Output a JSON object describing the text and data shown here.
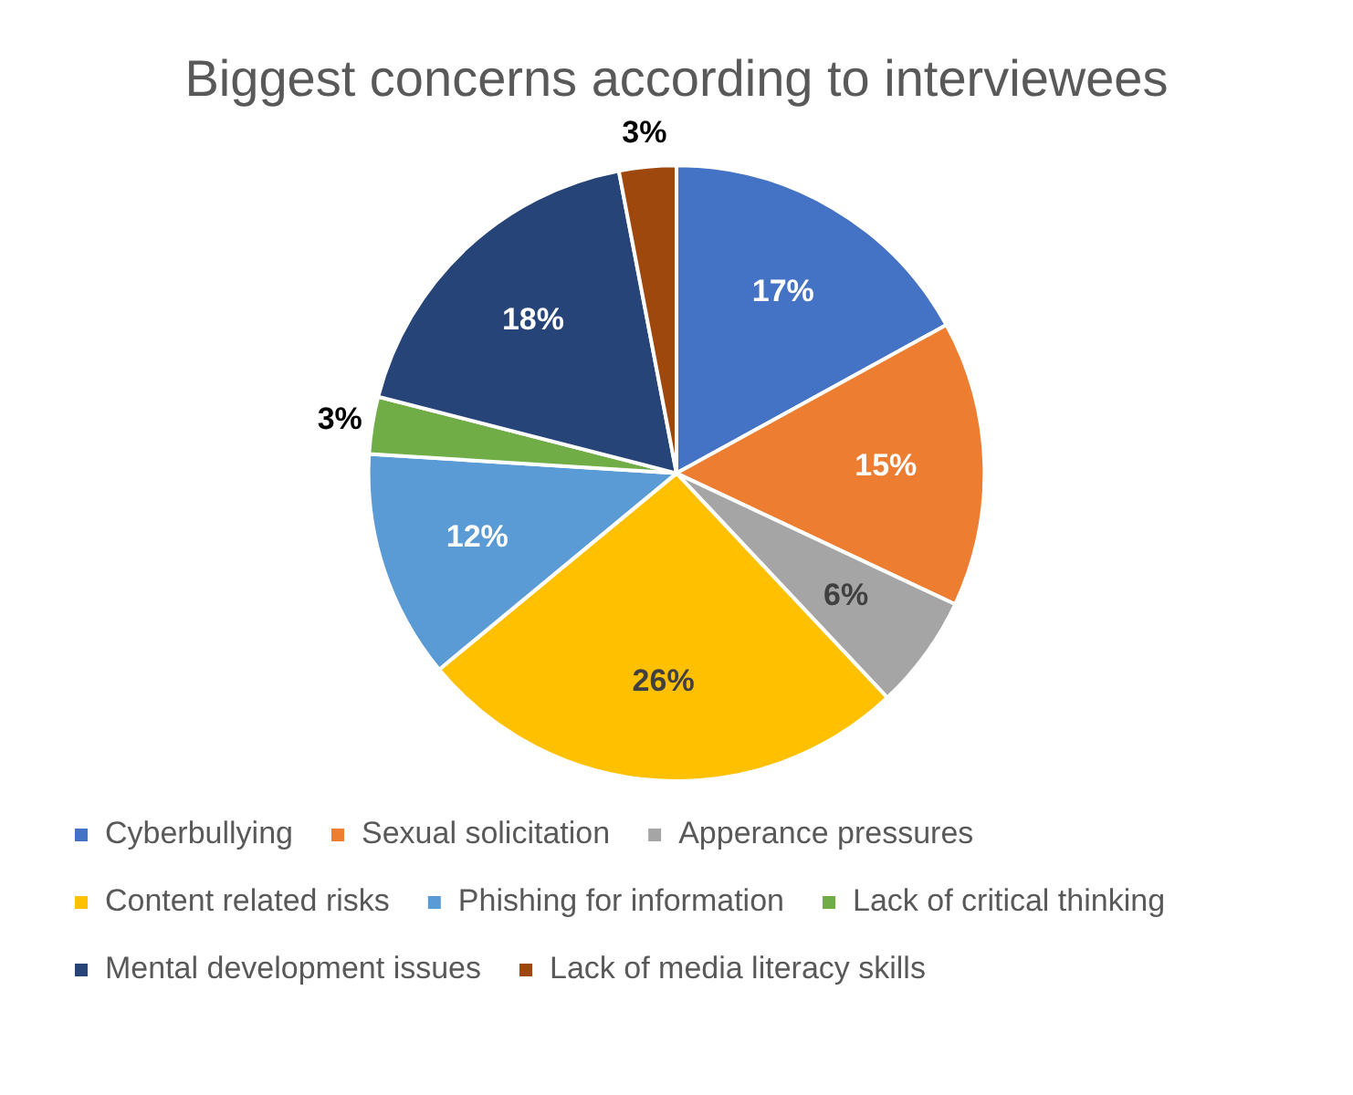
{
  "chart_data": {
    "type": "pie",
    "title": "Biggest concerns according to interviewees",
    "categories": [
      "Cyberbullying",
      "Sexual solicitation",
      "Apperance pressures",
      "Content related risks",
      "Phishing for information",
      "Lack of critical thinking",
      "Mental development issues",
      "Lack of media literacy skills"
    ],
    "values": [
      17,
      15,
      6,
      26,
      12,
      3,
      18,
      3
    ],
    "colors": [
      "#4472c4",
      "#ed7d31",
      "#a5a5a5",
      "#ffc000",
      "#5b9bd5",
      "#70ad47",
      "#264478",
      "#9e480e"
    ],
    "value_labels": [
      "17%",
      "15%",
      "6%",
      "26%",
      "12%",
      "3%",
      "18%",
      "3%"
    ],
    "legend": "bottom"
  }
}
